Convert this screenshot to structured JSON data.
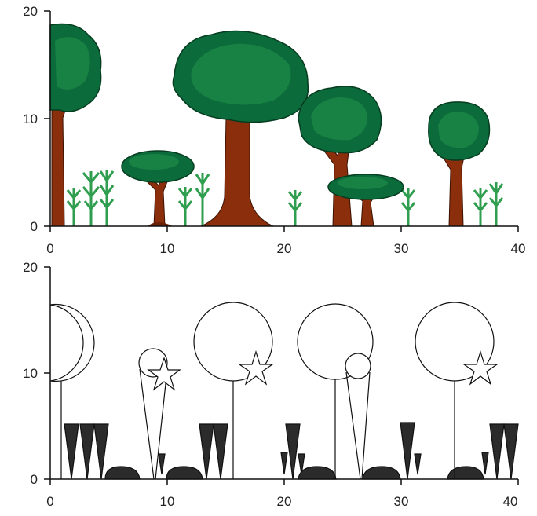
{
  "colors": {
    "trunk": "#8B2E0C",
    "canopy_dark": "#0B6B3A",
    "canopy_mid": "#1E8C4A",
    "canopy_light": "#2DAA5A",
    "grass": "#2F9E4F",
    "soil": "#6B1F05",
    "schematic_fill": "#2b2b2b",
    "axis": "#111111"
  },
  "top_panel": {
    "x_ticks": [
      "0",
      "10",
      "20",
      "30",
      "40"
    ],
    "y_ticks": [
      "0",
      "10",
      "20"
    ]
  },
  "bottom_panel": {
    "x_ticks": [
      "0",
      "10",
      "20",
      "30",
      "40"
    ],
    "y_ticks": [
      "0",
      "10",
      "20"
    ]
  }
}
